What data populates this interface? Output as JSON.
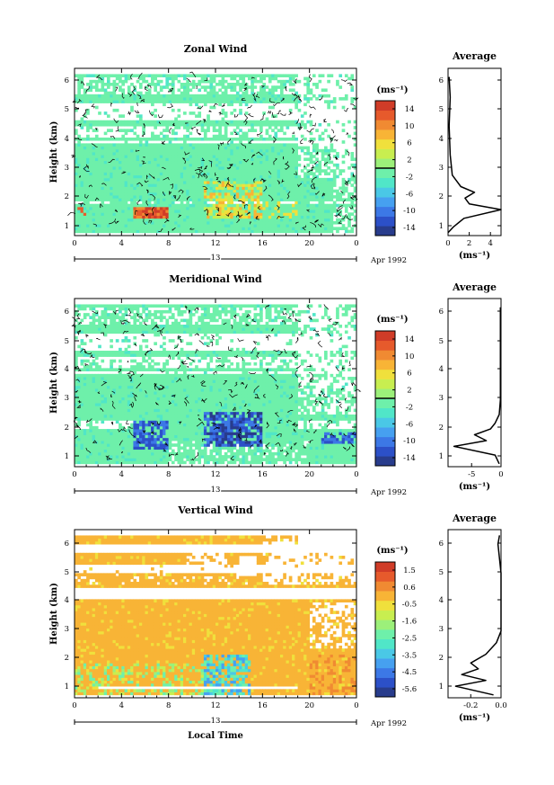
{
  "panels": [
    {
      "id": "zonal",
      "title": "Zonal Wind",
      "ylabel": "Height (km)",
      "y_ticks": [
        "1",
        "2",
        "3",
        "4",
        "5",
        "6"
      ],
      "x_ticks": [
        "0",
        "4",
        "8",
        "12",
        "16",
        "20",
        "0"
      ],
      "date_day": "13",
      "date_label": "Apr 1992",
      "cbar_unit": "(ms⁻¹)",
      "cbar_ticks": [
        "14",
        "10",
        "6",
        "2",
        "-2",
        "-6",
        "-10",
        "-14"
      ],
      "avg_title": "Average",
      "avg_x_ticks": [
        "0",
        "2",
        "4"
      ],
      "avg_unit": "(ms⁻¹)"
    },
    {
      "id": "meridional",
      "title": "Meridional Wind",
      "ylabel": "Height (km)",
      "y_ticks": [
        "1",
        "2",
        "3",
        "4",
        "5",
        "6"
      ],
      "x_ticks": [
        "0",
        "4",
        "8",
        "12",
        "16",
        "20",
        "0"
      ],
      "date_day": "13",
      "date_label": "Apr 1992",
      "cbar_unit": "(ms⁻¹)",
      "cbar_ticks": [
        "14",
        "10",
        "6",
        "2",
        "-2",
        "-6",
        "-10",
        "-14"
      ],
      "avg_title": "Average",
      "avg_x_ticks": [
        "-5",
        "0"
      ],
      "avg_unit": "(ms⁻¹)"
    },
    {
      "id": "vertical",
      "title": "Vertical Wind",
      "ylabel": "Height (km)",
      "y_ticks": [
        "1",
        "2",
        "3",
        "4",
        "5",
        "6"
      ],
      "x_ticks": [
        "0",
        "4",
        "8",
        "12",
        "16",
        "20",
        "0"
      ],
      "date_day": "13",
      "date_label": "Apr 1992",
      "x_label": "Local Time",
      "cbar_unit": "(ms⁻¹)",
      "cbar_ticks": [
        "1.5",
        "0.6",
        "-0.5",
        "-1.6",
        "-2.5",
        "-3.5",
        "-4.5",
        "-5.6"
      ],
      "avg_title": "Average",
      "avg_x_ticks": [
        "-0.2",
        "0.0"
      ],
      "avg_unit": "(ms⁻¹)"
    }
  ],
  "colormap": [
    "#283c8c",
    "#2c50c8",
    "#3c78e6",
    "#46a0f0",
    "#4ac8e6",
    "#50e6c8",
    "#6ef0aa",
    "#9cf07a",
    "#c8ee50",
    "#f0e03c",
    "#f8b436",
    "#f08a32",
    "#e65a2c",
    "#d03c28"
  ],
  "chart_data": [
    {
      "type": "heatmap",
      "title": "Zonal Wind",
      "xlabel": "",
      "ylabel": "Height (km)",
      "xlim": [
        0,
        24
      ],
      "ylim": [
        0.7,
        6.5
      ],
      "colorbar": {
        "unit": "ms-1",
        "range": [
          -14,
          14
        ],
        "ticks": [
          14,
          10,
          6,
          2,
          -2,
          -6,
          -10,
          -14
        ]
      },
      "features": [
        {
          "x": [
            5,
            8
          ],
          "y": [
            1.3,
            1.7
          ],
          "value": 12
        },
        {
          "x": [
            11,
            16
          ],
          "y": [
            1.3,
            2.6
          ],
          "value": 6
        },
        {
          "x": [
            0,
            24
          ],
          "y": [
            0.9,
            3.9
          ],
          "value": 0
        }
      ],
      "average_profile": {
        "xlim": [
          0,
          5
        ],
        "height": [
          0.8,
          1.0,
          1.3,
          1.6,
          1.8,
          2.0,
          2.2,
          2.4,
          2.8,
          3.5,
          4.5,
          5.5,
          6.2
        ],
        "value": [
          0.0,
          0.5,
          1.5,
          5.0,
          2.0,
          1.6,
          2.5,
          1.2,
          0.4,
          0.2,
          0.1,
          0.2,
          0.1
        ]
      }
    },
    {
      "type": "heatmap",
      "title": "Meridional Wind",
      "xlabel": "",
      "ylabel": "Height (km)",
      "xlim": [
        0,
        24
      ],
      "ylim": [
        0.7,
        6.5
      ],
      "colorbar": {
        "unit": "ms-1",
        "range": [
          -14,
          14
        ],
        "ticks": [
          14,
          10,
          6,
          2,
          -2,
          -6,
          -10,
          -14
        ]
      },
      "features": [
        {
          "x": [
            5,
            8
          ],
          "y": [
            1.3,
            2.3
          ],
          "value": -9
        },
        {
          "x": [
            11,
            16
          ],
          "y": [
            1.4,
            2.6
          ],
          "value": -10
        },
        {
          "x": [
            21,
            24
          ],
          "y": [
            1.5,
            1.9
          ],
          "value": -9
        },
        {
          "x": [
            0,
            24
          ],
          "y": [
            0.9,
            3.9
          ],
          "value": 0
        }
      ],
      "average_profile": {
        "xlim": [
          -9,
          0
        ],
        "height": [
          0.8,
          1.1,
          1.4,
          1.6,
          1.8,
          2.0,
          2.2,
          2.5,
          3.0,
          4.0,
          5.0,
          6.2
        ],
        "value": [
          -0.3,
          -1.0,
          -8.0,
          -2.5,
          -4.5,
          -1.8,
          -1.0,
          -0.3,
          -0.1,
          -0.1,
          -0.1,
          -0.1
        ]
      }
    },
    {
      "type": "heatmap",
      "title": "Vertical Wind",
      "xlabel": "Local Time",
      "ylabel": "Height (km)",
      "xlim": [
        0,
        24
      ],
      "ylim": [
        0.7,
        6.5
      ],
      "colorbar": {
        "unit": "ms-1",
        "range": [
          -5.6,
          1.5
        ],
        "ticks": [
          1.5,
          0.6,
          -0.5,
          -1.6,
          -2.5,
          -3.5,
          -4.5,
          -5.6
        ]
      },
      "features": [
        {
          "x": [
            0,
            24
          ],
          "y": [
            1.0,
            4.0
          ],
          "value": -0.2
        },
        {
          "x": [
            11,
            15
          ],
          "y": [
            0.9,
            2.2
          ],
          "value": -2.5
        },
        {
          "x": [
            20,
            24
          ],
          "y": [
            1.0,
            2.2
          ],
          "value": 0.4
        }
      ],
      "average_profile": {
        "xlim": [
          -0.35,
          0.0
        ],
        "height": [
          0.8,
          1.1,
          1.3,
          1.5,
          1.7,
          1.9,
          2.2,
          2.6,
          3.0,
          4.0,
          5.0,
          6.0,
          6.3
        ],
        "value": [
          -0.05,
          -0.3,
          -0.1,
          -0.26,
          -0.15,
          -0.2,
          -0.1,
          -0.03,
          0.0,
          0.0,
          0.0,
          -0.02,
          -0.01
        ]
      }
    }
  ]
}
